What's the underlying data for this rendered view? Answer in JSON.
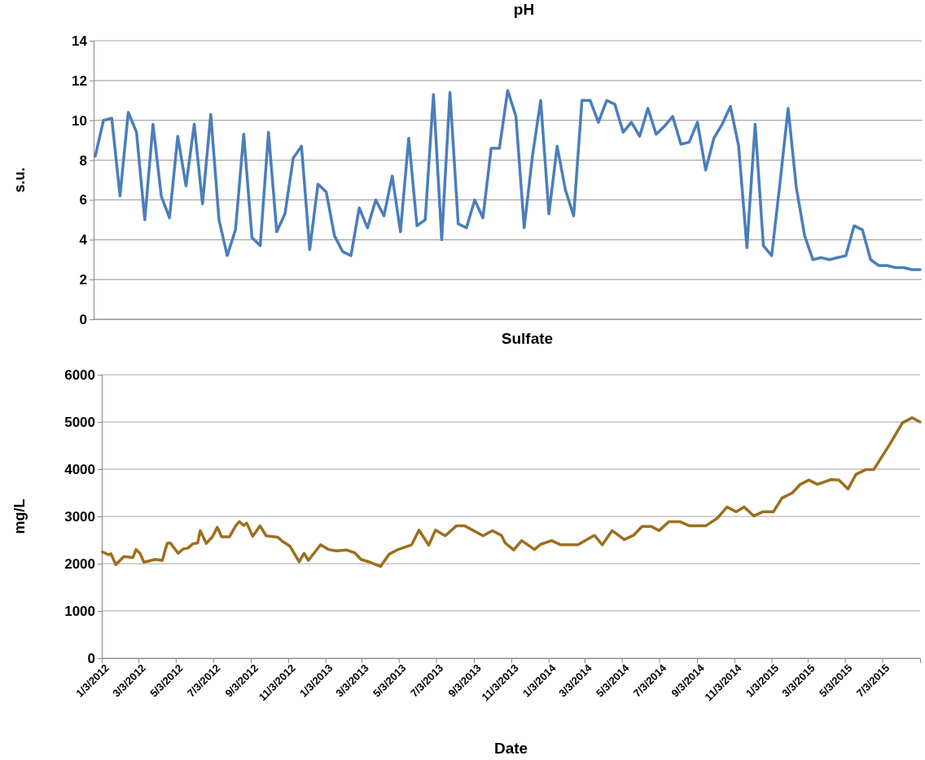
{
  "chart_data": [
    {
      "type": "line",
      "title": "pH",
      "ylabel": "s.u.",
      "color": "#4a7ebb",
      "grid": "y",
      "tick_labels": "y",
      "line_style": "solid",
      "marker": "none",
      "ylim": [
        0,
        14
      ],
      "yticks": [
        0,
        2,
        4,
        6,
        8,
        10,
        12,
        14
      ],
      "categories": [
        null,
        null,
        null,
        null,
        null,
        null,
        null,
        null,
        null,
        null,
        null,
        null,
        null,
        null,
        null,
        null,
        null,
        null,
        null,
        null,
        null,
        null,
        null,
        null,
        null,
        null,
        null,
        null,
        null,
        null,
        null,
        null,
        null,
        null,
        null,
        null,
        null,
        null,
        null,
        null,
        null,
        null,
        null,
        null,
        null,
        null,
        null,
        null,
        null,
        null,
        null,
        null,
        null,
        null,
        null,
        null,
        null,
        null,
        null,
        null,
        null,
        null,
        null,
        null,
        null,
        null,
        null,
        null,
        null,
        null,
        null,
        null,
        null,
        null,
        null,
        null,
        null,
        null,
        null,
        null,
        null,
        null,
        null,
        null,
        null,
        null,
        null,
        null,
        null,
        null,
        null,
        null,
        null,
        null,
        null,
        null,
        null,
        null,
        null,
        null,
        null
      ],
      "values": [
        8.2,
        10.0,
        10.1,
        6.2,
        10.4,
        9.4,
        5.0,
        9.8,
        6.2,
        5.1,
        9.2,
        6.7,
        9.8,
        5.8,
        10.3,
        5.0,
        3.2,
        4.5,
        9.3,
        4.1,
        3.7,
        9.4,
        4.4,
        5.3,
        8.1,
        8.7,
        3.5,
        6.8,
        6.4,
        4.2,
        3.4,
        3.2,
        5.6,
        4.6,
        6.0,
        5.2,
        7.2,
        4.4,
        9.1,
        4.7,
        5.0,
        11.3,
        4.0,
        11.4,
        4.8,
        4.6,
        6.0,
        5.1,
        8.6,
        8.6,
        11.5,
        10.2,
        4.6,
        8.2,
        11.0,
        5.3,
        8.7,
        6.5,
        5.2,
        11.0,
        11.0,
        9.9,
        11.0,
        10.8,
        9.4,
        9.9,
        9.2,
        10.6,
        9.3,
        9.7,
        10.2,
        8.8,
        8.9,
        9.9,
        7.5,
        9.1,
        9.8,
        10.7,
        8.7,
        3.6,
        9.8,
        3.7,
        3.2,
        6.8,
        10.6,
        6.6,
        4.2,
        3.0,
        3.1,
        3.0,
        3.1,
        3.2,
        4.7,
        4.5,
        3.0,
        2.7,
        2.7,
        2.6,
        2.6,
        2.5,
        2.5
      ]
    },
    {
      "type": "line",
      "title": "Sulfate",
      "xlabel": "Date",
      "ylabel": "mg/L",
      "color": "#9c6f1e",
      "grid": "y",
      "line_style": "solid",
      "marker": "none",
      "xlim": [
        "2012-01-03",
        "2015-09-03"
      ],
      "xticks": [
        {
          "value": "2012-01-03",
          "label": "1/3/2012"
        },
        {
          "value": "2012-03-03",
          "label": "3/3/2012"
        },
        {
          "value": "2012-05-03",
          "label": "5/3/2012"
        },
        {
          "value": "2012-07-03",
          "label": "7/3/2012"
        },
        {
          "value": "2012-09-03",
          "label": "9/3/2012"
        },
        {
          "value": "2012-11-03",
          "label": "11/3/2012"
        },
        {
          "value": "2013-01-03",
          "label": "1/3/2013"
        },
        {
          "value": "2013-03-03",
          "label": "3/3/2013"
        },
        {
          "value": "2013-05-03",
          "label": "5/3/2013"
        },
        {
          "value": "2013-07-03",
          "label": "7/3/2013"
        },
        {
          "value": "2013-09-03",
          "label": "9/3/2013"
        },
        {
          "value": "2013-11-03",
          "label": "11/3/2013"
        },
        {
          "value": "2014-01-03",
          "label": "1/3/2014"
        },
        {
          "value": "2014-03-03",
          "label": "3/3/2014"
        },
        {
          "value": "2014-05-03",
          "label": "5/3/2014"
        },
        {
          "value": "2014-07-03",
          "label": "7/3/2014"
        },
        {
          "value": "2014-09-03",
          "label": "9/3/2014"
        },
        {
          "value": "2014-11-03",
          "label": "11/3/2014"
        },
        {
          "value": "2015-01-03",
          "label": "1/3/2015"
        },
        {
          "value": "2015-03-03",
          "label": "3/3/2015"
        },
        {
          "value": "2015-05-03",
          "label": "5/3/2015"
        },
        {
          "value": "2015-07-03",
          "label": "7/3/2015"
        }
      ],
      "ylim": [
        0,
        6000
      ],
      "yticks": [
        0,
        1000,
        2000,
        3000,
        4000,
        5000,
        6000
      ],
      "x": [
        "2012-01-04",
        "2012-01-14",
        "2012-01-18",
        "2012-01-26",
        "2012-02-08",
        "2012-02-23",
        "2012-02-28",
        "2012-03-06",
        "2012-03-12",
        "2012-03-30",
        "2012-04-11",
        "2012-04-19",
        "2012-04-24",
        "2012-05-07",
        "2012-05-15",
        "2012-05-23",
        "2012-05-31",
        "2012-06-08",
        "2012-06-12",
        "2012-06-22",
        "2012-07-02",
        "2012-07-10",
        "2012-07-17",
        "2012-07-30",
        "2012-08-09",
        "2012-08-15",
        "2012-08-22",
        "2012-08-27",
        "2012-09-06",
        "2012-09-18",
        "2012-09-28",
        "2012-10-17",
        "2012-10-26",
        "2012-11-06",
        "2012-11-21",
        "2012-11-29",
        "2012-12-06",
        "2012-12-17",
        "2012-12-26",
        "2013-01-08",
        "2013-01-21",
        "2013-02-06",
        "2013-02-20",
        "2013-03-02",
        "2013-03-17",
        "2013-04-03",
        "2013-04-17",
        "2013-04-30",
        "2013-05-24",
        "2013-06-05",
        "2013-06-21",
        "2013-07-02",
        "2013-07-18",
        "2013-08-05",
        "2013-08-19",
        "2013-09-18",
        "2013-10-03",
        "2013-10-18",
        "2013-10-24",
        "2013-11-07",
        "2013-11-20",
        "2013-12-11",
        "2013-12-21",
        "2014-01-08",
        "2014-01-23",
        "2014-02-20",
        "2014-03-19",
        "2014-04-01",
        "2014-04-17",
        "2014-05-07",
        "2014-05-22",
        "2014-06-05",
        "2014-06-20",
        "2014-07-03",
        "2014-07-19",
        "2014-08-06",
        "2014-08-22",
        "2014-09-17",
        "2014-10-06",
        "2014-10-22",
        "2014-11-06",
        "2014-11-19",
        "2014-12-05",
        "2014-12-20",
        "2015-01-06",
        "2015-01-20",
        "2015-02-06",
        "2015-02-19",
        "2015-03-05",
        "2015-03-19",
        "2015-04-10",
        "2015-04-23",
        "2015-05-08",
        "2015-05-21",
        "2015-06-06",
        "2015-06-19",
        "2015-07-16",
        "2015-08-05",
        "2015-08-21",
        "2015-09-03"
      ],
      "values": [
        2250,
        2190,
        2210,
        1980,
        2150,
        2130,
        2300,
        2210,
        2030,
        2090,
        2070,
        2430,
        2440,
        2220,
        2310,
        2330,
        2420,
        2440,
        2700,
        2430,
        2570,
        2770,
        2570,
        2570,
        2800,
        2890,
        2810,
        2860,
        2580,
        2800,
        2590,
        2560,
        2460,
        2370,
        2040,
        2220,
        2070,
        2250,
        2400,
        2300,
        2270,
        2290,
        2230,
        2090,
        2030,
        1940,
        2200,
        2290,
        2400,
        2710,
        2390,
        2710,
        2590,
        2800,
        2800,
        2590,
        2700,
        2600,
        2440,
        2290,
        2490,
        2300,
        2410,
        2490,
        2400,
        2400,
        2600,
        2400,
        2700,
        2510,
        2600,
        2790,
        2790,
        2700,
        2890,
        2890,
        2800,
        2800,
        2960,
        3200,
        3100,
        3200,
        3010,
        3100,
        3100,
        3390,
        3500,
        3680,
        3770,
        3680,
        3780,
        3770,
        3580,
        3890,
        3990,
        3990,
        4540,
        4980,
        5090,
        5000
      ]
    }
  ]
}
